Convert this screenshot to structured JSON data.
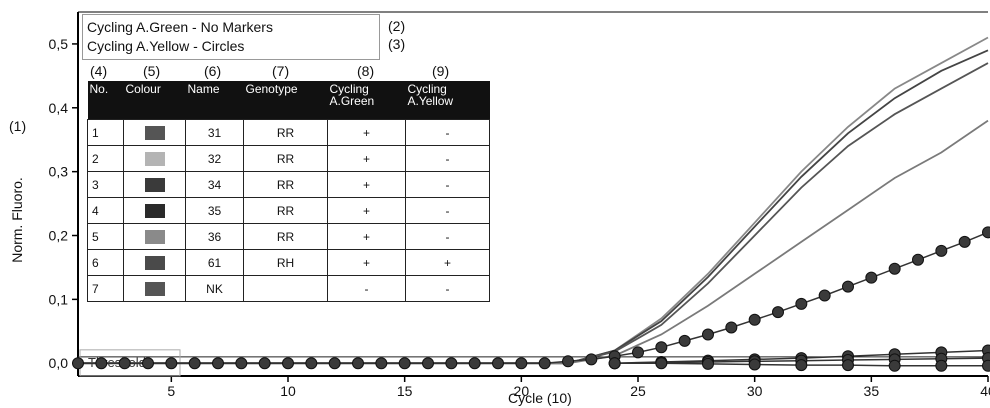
{
  "legend": {
    "entries": [
      "Cycling A.Green - No Markers",
      "Cycling A.Yellow - Circles"
    ],
    "refs": [
      "(2)",
      "(3)"
    ]
  },
  "table": {
    "ref_labels": [
      "(4)",
      "(5)",
      "(6)",
      "(7)",
      "(8)",
      "(9)"
    ],
    "headers": [
      "No.",
      "Colour",
      "Name",
      "Genotype",
      "Cycling A.Green",
      "Cycling A.Yellow"
    ],
    "rows": [
      {
        "no": "1",
        "colour": "#555555",
        "name": "31",
        "genotype": "RR",
        "green": "+",
        "yellow": "-"
      },
      {
        "no": "2",
        "colour": "#b4b4b4",
        "name": "32",
        "genotype": "RR",
        "green": "+",
        "yellow": "-"
      },
      {
        "no": "3",
        "colour": "#3a3a3a",
        "name": "34",
        "genotype": "RR",
        "green": "+",
        "yellow": "-"
      },
      {
        "no": "4",
        "colour": "#2a2a2a",
        "name": "35",
        "genotype": "RR",
        "green": "+",
        "yellow": "-"
      },
      {
        "no": "5",
        "colour": "#8a8a8a",
        "name": "36",
        "genotype": "RR",
        "green": "+",
        "yellow": "-"
      },
      {
        "no": "6",
        "colour": "#4a4a4a",
        "name": "61",
        "genotype": "RH",
        "green": "+",
        "yellow": "+"
      },
      {
        "no": "7",
        "colour": "#555555",
        "name": "NK",
        "genotype": "",
        "green": "-",
        "yellow": "-"
      }
    ]
  },
  "y_ref": "(1)",
  "chart_data": {
    "type": "line",
    "xlabel": "Cycle (10)",
    "ylabel": "Norm. Fluoro.",
    "xlim": [
      1,
      40
    ],
    "ylim": [
      -0.02,
      0.55
    ],
    "xticks": [
      5,
      10,
      15,
      20,
      25,
      30,
      35,
      40
    ],
    "xtick_labels": [
      "5",
      "10",
      "15",
      "20",
      "25",
      "30",
      "35",
      "40"
    ],
    "yticks": [
      0.0,
      0.1,
      0.2,
      0.3,
      0.4,
      0.5
    ],
    "ytick_labels": [
      "0,0",
      "0,1",
      "0,2",
      "0,3",
      "0,4",
      "0,5"
    ],
    "threshold": {
      "value": 0.01,
      "label": "Threshold"
    },
    "series": [
      {
        "channel": "Cycling A.Green",
        "marker": "none",
        "color": "#888888",
        "x": [
          1,
          22,
          24,
          26,
          28,
          30,
          32,
          34,
          36,
          38,
          40
        ],
        "y": [
          0.0,
          0.0,
          0.02,
          0.07,
          0.14,
          0.22,
          0.3,
          0.37,
          0.43,
          0.47,
          0.51
        ]
      },
      {
        "channel": "Cycling A.Green",
        "marker": "none",
        "color": "#444444",
        "x": [
          1,
          22,
          24,
          26,
          28,
          30,
          32,
          34,
          36,
          38,
          40
        ],
        "y": [
          0.0,
          0.0,
          0.02,
          0.066,
          0.135,
          0.214,
          0.292,
          0.36,
          0.415,
          0.458,
          0.49
        ]
      },
      {
        "channel": "Cycling A.Green",
        "marker": "none",
        "color": "#555555",
        "x": [
          1,
          22,
          24,
          26,
          28,
          30,
          32,
          34,
          36,
          38,
          40
        ],
        "y": [
          0.0,
          0.0,
          0.018,
          0.06,
          0.125,
          0.2,
          0.275,
          0.34,
          0.39,
          0.43,
          0.47
        ]
      },
      {
        "channel": "Cycling A.Green",
        "marker": "none",
        "color": "#7a7a7a",
        "x": [
          1,
          22,
          24,
          26,
          28,
          30,
          32,
          34,
          36,
          38,
          40
        ],
        "y": [
          0.0,
          0.0,
          0.012,
          0.045,
          0.09,
          0.14,
          0.19,
          0.24,
          0.29,
          0.33,
          0.38
        ]
      },
      {
        "channel": "Cycling A.Yellow",
        "marker": "circle",
        "color": "#333333",
        "x": [
          1,
          2,
          3,
          4,
          5,
          6,
          7,
          8,
          9,
          10,
          11,
          12,
          13,
          14,
          15,
          16,
          17,
          18,
          19,
          20,
          21,
          22,
          23,
          24,
          25,
          26,
          27,
          28,
          29,
          30,
          31,
          32,
          33,
          34,
          35,
          36,
          37,
          38,
          39,
          40
        ],
        "y": [
          0.0,
          0.0,
          0.0,
          0.0,
          0.0,
          0.0,
          0.0,
          0.0,
          0.0,
          0.0,
          0.0,
          0.0,
          0.0,
          0.0,
          0.0,
          0.0,
          0.0,
          0.0,
          0.0,
          0.0,
          0.0,
          0.003,
          0.006,
          0.011,
          0.017,
          0.025,
          0.035,
          0.045,
          0.056,
          0.068,
          0.08,
          0.093,
          0.106,
          0.12,
          0.134,
          0.148,
          0.162,
          0.176,
          0.19,
          0.205
        ]
      },
      {
        "channel": "Cycling A.Yellow",
        "marker": "circle",
        "color": "#333333",
        "x": [
          24,
          26,
          28,
          30,
          32,
          34,
          36,
          38,
          40
        ],
        "y": [
          0.0,
          0.002,
          0.004,
          0.006,
          0.008,
          0.011,
          0.014,
          0.017,
          0.02
        ]
      },
      {
        "channel": "Cycling A.Yellow",
        "marker": "circle",
        "color": "#333333",
        "x": [
          24,
          26,
          28,
          30,
          32,
          34,
          36,
          38,
          40
        ],
        "y": [
          0.0,
          0.001,
          0.002,
          0.003,
          0.004,
          0.005,
          0.006,
          0.007,
          0.008
        ]
      },
      {
        "channel": "Cycling A.Yellow",
        "marker": "circle",
        "color": "#333333",
        "x": [
          24,
          26,
          28,
          30,
          32,
          34,
          36,
          38,
          40
        ],
        "y": [
          0.0,
          0.0,
          -0.001,
          -0.002,
          -0.003,
          -0.003,
          -0.004,
          -0.004,
          -0.004
        ]
      }
    ]
  }
}
